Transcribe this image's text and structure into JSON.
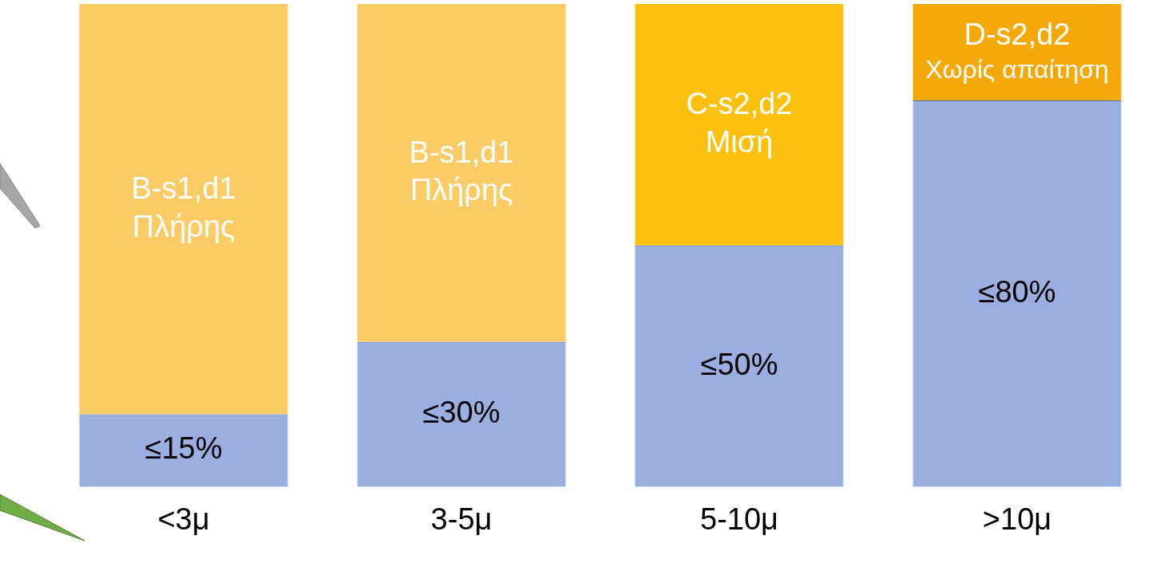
{
  "chart_data": {
    "type": "bar",
    "stacked": true,
    "ylim": [
      0,
      100
    ],
    "categories": [
      "<3μ",
      "3-5μ",
      "5-10μ",
      ">10μ"
    ],
    "series": [
      {
        "color": "#9aafdf",
        "values": [
          15,
          30,
          50,
          80
        ],
        "value_labels": [
          "≤15%",
          "≤30%",
          "≤50%",
          "≤80%"
        ]
      },
      {
        "colors": [
          "#fbcb66",
          "#fbcb66",
          "#fbc010",
          "#f5a80a"
        ],
        "values": [
          85,
          70,
          50,
          20
        ],
        "value_labels": [
          "B-s1,d1\nΠλήρης",
          "B-s1,d1\nΠλήρης",
          "C-s2,d2\nΜισή",
          "D-s2,d2\nΧωρίς απαίτηση"
        ]
      }
    ],
    "grid": false,
    "legend": false,
    "tick_labels": "x"
  }
}
